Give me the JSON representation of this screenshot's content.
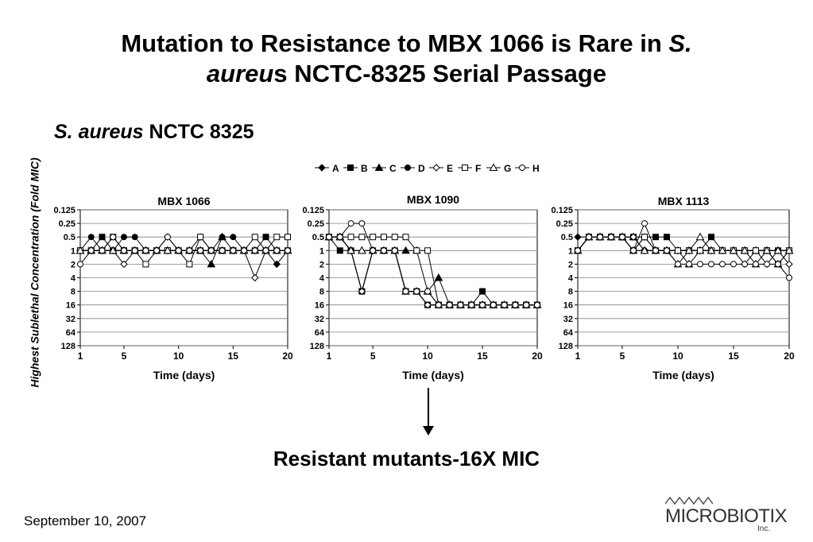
{
  "slide": {
    "title_part1": "Mutation to Resistance to MBX 1066 is Rare in ",
    "title_italic1": "S.",
    "title_italic2": "aureu",
    "title_part2": "s NCTC-8325 Serial Passage",
    "subtitle_italic": "S. aureus",
    "subtitle_rest": " NCTC 8325",
    "conclusion": "Resistant mutants-16X MIC",
    "date": "September 10, 2007",
    "logo_text": "MICROBIOTIX",
    "logo_sub": "Inc."
  },
  "colors": {
    "line": "#000000",
    "grid": "#808080",
    "background": "#ffffff"
  },
  "chart_data": [
    {
      "type": "line",
      "title": "MBX 1066",
      "xlabel": "Time (days)",
      "ylabel": "Highest Sublethal Concentration (Fold MIC)",
      "x_ticks": [
        1,
        5,
        10,
        15,
        20
      ],
      "y_ticks": [
        "0.125",
        "0.25",
        "0.5",
        "1",
        "2",
        "4",
        "8",
        "16",
        "32",
        "64",
        "128"
      ],
      "y_scale": "log2, reversed",
      "xlim": [
        1,
        20
      ],
      "ylim": [
        0.125,
        128
      ],
      "grid": true,
      "legend": "above charts",
      "x": [
        1,
        2,
        3,
        4,
        5,
        6,
        7,
        8,
        9,
        10,
        11,
        12,
        13,
        14,
        15,
        16,
        17,
        18,
        19,
        20
      ],
      "series": [
        {
          "name": "A",
          "marker": "diamond-filled",
          "values": [
            1,
            1,
            1,
            1,
            1,
            1,
            1,
            1,
            1,
            1,
            1,
            1,
            1,
            1,
            1,
            1,
            1,
            1,
            2,
            1
          ]
        },
        {
          "name": "B",
          "marker": "square-filled",
          "values": [
            1,
            1,
            0.5,
            1,
            1,
            1,
            1,
            1,
            1,
            1,
            1,
            1,
            1,
            1,
            1,
            1,
            1,
            0.5,
            1,
            1
          ]
        },
        {
          "name": "C",
          "marker": "triangle-filled",
          "values": [
            1,
            1,
            1,
            1,
            1,
            1,
            1,
            1,
            1,
            1,
            1,
            1,
            2,
            0.5,
            1,
            1,
            1,
            1,
            1,
            1
          ]
        },
        {
          "name": "D",
          "marker": "circle-filled",
          "values": [
            1,
            0.5,
            1,
            1,
            0.5,
            0.5,
            1,
            1,
            1,
            1,
            1,
            1,
            1,
            0.5,
            0.5,
            1,
            1,
            1,
            1,
            1
          ]
        },
        {
          "name": "E",
          "marker": "diamond-open",
          "values": [
            1,
            1,
            1,
            1,
            2,
            1,
            1,
            1,
            0.5,
            1,
            1,
            0.5,
            1,
            1,
            1,
            1,
            4,
            1,
            1,
            1
          ]
        },
        {
          "name": "F",
          "marker": "square-open",
          "values": [
            1,
            1,
            1,
            0.5,
            1,
            1,
            2,
            1,
            1,
            1,
            2,
            0.5,
            1,
            1,
            1,
            1,
            0.5,
            1,
            0.5,
            0.5
          ]
        },
        {
          "name": "G",
          "marker": "triangle-open",
          "values": [
            1,
            1,
            1,
            1,
            1,
            1,
            1,
            1,
            1,
            1,
            1,
            1,
            1,
            1,
            1,
            1,
            1,
            1,
            1,
            1
          ]
        },
        {
          "name": "H",
          "marker": "circle-open",
          "values": [
            2,
            1,
            1,
            0.5,
            1,
            1,
            1,
            1,
            0.5,
            1,
            1,
            1,
            1,
            1,
            1,
            1,
            1,
            1,
            1,
            1
          ]
        }
      ]
    },
    {
      "type": "line",
      "title": "MBX 1090",
      "xlabel": "Time (days)",
      "x_ticks": [
        1,
        5,
        10,
        15,
        20
      ],
      "y_ticks": [
        "0.125",
        "0.25",
        "0.5",
        "1",
        "2",
        "4",
        "8",
        "16",
        "32",
        "64",
        "128"
      ],
      "y_scale": "log2, reversed",
      "xlim": [
        1,
        20
      ],
      "ylim": [
        0.125,
        128
      ],
      "grid": true,
      "x": [
        1,
        2,
        3,
        4,
        5,
        6,
        7,
        8,
        9,
        10,
        11,
        12,
        13,
        14,
        15,
        16,
        17,
        18,
        19,
        20
      ],
      "series": [
        {
          "name": "A",
          "marker": "diamond-filled",
          "values": [
            0.5,
            0.5,
            1,
            8,
            1,
            1,
            1,
            8,
            8,
            16,
            16,
            16,
            16,
            16,
            16,
            16,
            16,
            16,
            16,
            16
          ]
        },
        {
          "name": "B",
          "marker": "square-filled",
          "values": [
            0.5,
            1,
            1,
            8,
            1,
            1,
            1,
            8,
            8,
            16,
            16,
            16,
            16,
            16,
            8,
            16,
            16,
            16,
            16,
            16
          ]
        },
        {
          "name": "C",
          "marker": "triangle-filled",
          "values": [
            0.5,
            0.5,
            1,
            1,
            1,
            1,
            1,
            1,
            1,
            8,
            4,
            16,
            16,
            16,
            16,
            16,
            16,
            16,
            16,
            16
          ]
        },
        {
          "name": "D",
          "marker": "circle-filled",
          "values": [
            0.5,
            0.5,
            1,
            8,
            1,
            1,
            1,
            8,
            8,
            16,
            16,
            16,
            16,
            16,
            16,
            16,
            16,
            16,
            16,
            16
          ]
        },
        {
          "name": "E",
          "marker": "diamond-open",
          "values": [
            0.5,
            0.5,
            1,
            8,
            1,
            1,
            1,
            8,
            8,
            16,
            16,
            16,
            16,
            16,
            16,
            16,
            16,
            16,
            16,
            16
          ]
        },
        {
          "name": "F",
          "marker": "square-open",
          "values": [
            0.5,
            0.5,
            0.5,
            0.5,
            0.5,
            0.5,
            0.5,
            0.5,
            1,
            1,
            16,
            16,
            16,
            16,
            16,
            16,
            16,
            16,
            16,
            16
          ]
        },
        {
          "name": "G",
          "marker": "triangle-open",
          "values": [
            0.5,
            0.5,
            1,
            1,
            1,
            1,
            1,
            8,
            8,
            8,
            16,
            16,
            16,
            16,
            16,
            16,
            16,
            16,
            16,
            16
          ]
        },
        {
          "name": "H",
          "marker": "circle-open",
          "values": [
            0.5,
            0.5,
            0.25,
            0.25,
            1,
            1,
            1,
            8,
            8,
            8,
            16,
            16,
            16,
            16,
            16,
            16,
            16,
            16,
            16,
            16
          ]
        }
      ]
    },
    {
      "type": "line",
      "title": "MBX 1113",
      "xlabel": "Time (days)",
      "x_ticks": [
        1,
        5,
        10,
        15,
        20
      ],
      "y_ticks": [
        "0.125",
        "0.25",
        "0.5",
        "1",
        "2",
        "4",
        "8",
        "16",
        "32",
        "64",
        "128"
      ],
      "y_scale": "log2, reversed",
      "xlim": [
        1,
        20
      ],
      "ylim": [
        0.125,
        128
      ],
      "grid": true,
      "x": [
        1,
        2,
        3,
        4,
        5,
        6,
        7,
        8,
        9,
        10,
        11,
        12,
        13,
        14,
        15,
        16,
        17,
        18,
        19,
        20
      ],
      "series": [
        {
          "name": "A",
          "marker": "diamond-filled",
          "values": [
            0.5,
            0.5,
            0.5,
            0.5,
            0.5,
            1,
            0.5,
            1,
            1,
            1,
            1,
            1,
            1,
            1,
            1,
            1,
            1,
            1,
            1,
            1
          ]
        },
        {
          "name": "B",
          "marker": "square-filled",
          "values": [
            1,
            0.5,
            0.5,
            0.5,
            0.5,
            0.5,
            0.5,
            0.5,
            0.5,
            1,
            1,
            1,
            0.5,
            1,
            1,
            1,
            1,
            1,
            1,
            1
          ]
        },
        {
          "name": "C",
          "marker": "triangle-filled",
          "values": [
            1,
            0.5,
            0.5,
            0.5,
            0.5,
            0.5,
            1,
            1,
            1,
            1,
            2,
            1,
            1,
            1,
            1,
            1,
            1,
            1,
            2,
            1
          ]
        },
        {
          "name": "D",
          "marker": "circle-filled",
          "values": [
            1,
            0.5,
            0.5,
            0.5,
            0.5,
            1,
            1,
            1,
            1,
            1,
            1,
            1,
            1,
            1,
            1,
            1,
            1,
            1,
            1,
            1
          ]
        },
        {
          "name": "E",
          "marker": "diamond-open",
          "values": [
            1,
            0.5,
            0.5,
            0.5,
            0.5,
            0.5,
            1,
            1,
            1,
            1,
            1,
            1,
            1,
            1,
            1,
            2,
            1,
            2,
            1,
            2
          ]
        },
        {
          "name": "F",
          "marker": "square-open",
          "values": [
            1,
            0.5,
            0.5,
            0.5,
            0.5,
            1,
            0.5,
            1,
            1,
            1,
            1,
            1,
            1,
            1,
            1,
            1,
            1,
            1,
            2,
            1
          ]
        },
        {
          "name": "G",
          "marker": "triangle-open",
          "values": [
            1,
            0.5,
            0.5,
            0.5,
            0.5,
            1,
            1,
            1,
            1,
            2,
            1,
            0.5,
            1,
            1,
            1,
            1,
            2,
            1,
            1,
            1
          ]
        },
        {
          "name": "H",
          "marker": "circle-open",
          "values": [
            1,
            0.5,
            0.5,
            0.5,
            0.5,
            1,
            0.25,
            1,
            1,
            2,
            2,
            2,
            2,
            2,
            2,
            2,
            2,
            2,
            2,
            4
          ]
        }
      ]
    }
  ]
}
